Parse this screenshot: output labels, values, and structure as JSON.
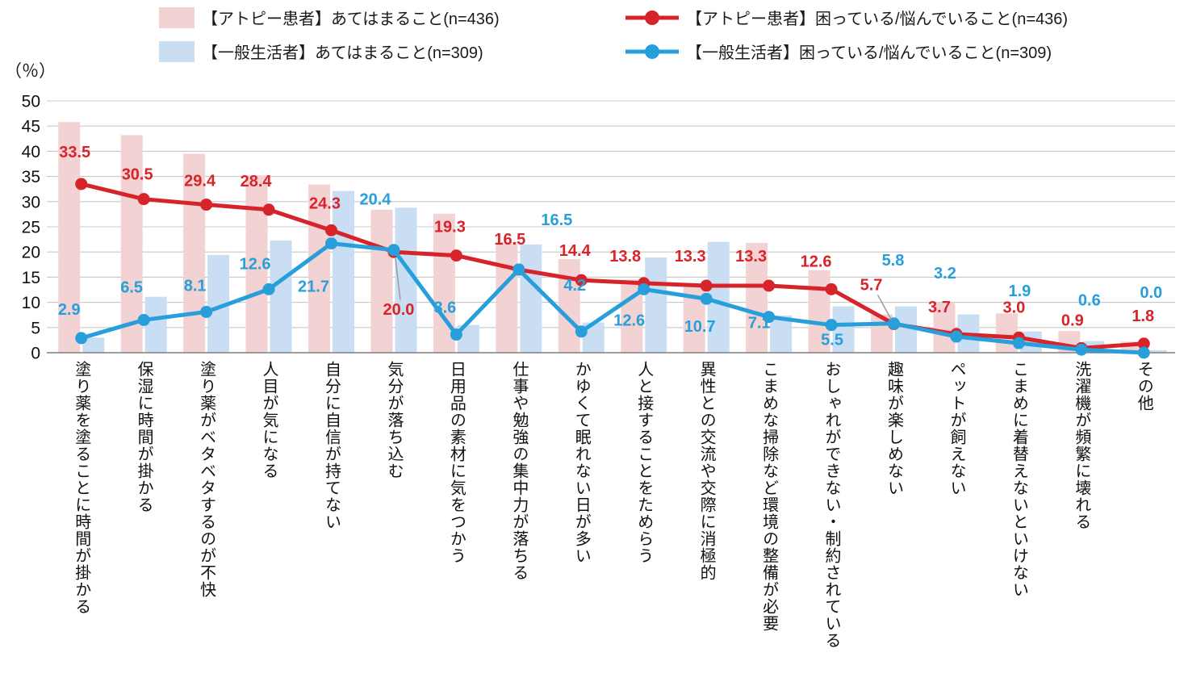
{
  "unit_label": "（％）",
  "legend": {
    "atopy_bar": "【アトピー患者】あてはまること(n=436)",
    "general_bar": "【一般生活者】あてはまること(n=309)",
    "atopy_line": "【アトピー患者】困っている/悩んでいること(n=436)",
    "general_line": "【一般生活者】困っている/悩んでいること(n=309)"
  },
  "axis": {
    "unit": "%",
    "ylim": [
      0,
      50
    ],
    "y_ticks": [
      0,
      5,
      10,
      15,
      20,
      25,
      30,
      35,
      40,
      45,
      50
    ]
  },
  "colors": {
    "atopy_bar": "#f3d2d3",
    "general_bar": "#c9def2",
    "atopy_line": "#d7232a",
    "general_line": "#269fda",
    "grid": "#c9c9c9",
    "baseline": "#7f7f7f",
    "leader": "#999999",
    "text": "#111111"
  },
  "chart_data": {
    "type": "bar+line",
    "title": "",
    "xlabel": "",
    "ylabel": "（％）",
    "ylim": [
      0,
      50
    ],
    "grid": true,
    "legend_position": "top",
    "categories": [
      "塗り薬を塗ることに時間が掛かる",
      "保湿に時間が掛かる",
      "塗り薬がベタベタするのが不快",
      "人目が気になる",
      "自分に自信が持てない",
      "気分が落ち込む",
      "日用品の素材に気をつかう",
      "仕事や勉強の集中力が落ちる",
      "かゆくて眠れない日が多い",
      "人と接することをためらう",
      "異性との交流や交際に消極的",
      "こまめな掃除など環境の整備が必要",
      "おしゃれができない・制約されている",
      "趣味が楽しめない",
      "ペットが飼えない",
      "こまめに着替えないといけない",
      "洗濯機が頻繁に壊れる",
      "その他"
    ],
    "series": [
      {
        "name": "【アトピー患者】あてはまること(n=436)",
        "type": "bar",
        "color": "#f3d2d3",
        "values_estimated_from_gridlines": true,
        "values": [
          45.8,
          43.2,
          39.5,
          35.2,
          33.4,
          28.4,
          27.6,
          22.0,
          18.6,
          14.5,
          13.5,
          21.8,
          16.4,
          7.6,
          9.9,
          7.8,
          4.3,
          2.2
        ]
      },
      {
        "name": "【一般生活者】あてはまること(n=309)",
        "type": "bar",
        "color": "#c9def2",
        "values_estimated_from_gridlines": true,
        "values": [
          3.0,
          11.1,
          19.4,
          22.3,
          32.1,
          28.8,
          5.5,
          21.5,
          6.0,
          18.9,
          22.0,
          7.4,
          9.2,
          9.2,
          7.6,
          4.2,
          2.3,
          0.5
        ]
      },
      {
        "name": "【アトピー患者】困っている/悩んでいること(n=436)",
        "type": "line",
        "color": "#d7232a",
        "values": [
          33.5,
          30.5,
          29.4,
          28.4,
          24.3,
          20.0,
          19.3,
          16.5,
          14.4,
          13.8,
          13.3,
          13.3,
          12.6,
          5.7,
          3.7,
          3.0,
          0.9,
          1.8
        ]
      },
      {
        "name": "【一般生活者】困っている/悩んでいること(n=309)",
        "type": "line",
        "color": "#269fda",
        "values": [
          2.9,
          6.5,
          8.1,
          12.6,
          21.7,
          20.4,
          3.6,
          16.5,
          4.2,
          12.6,
          10.7,
          7.1,
          5.5,
          5.8,
          3.2,
          1.9,
          0.6,
          0.0
        ]
      }
    ]
  }
}
